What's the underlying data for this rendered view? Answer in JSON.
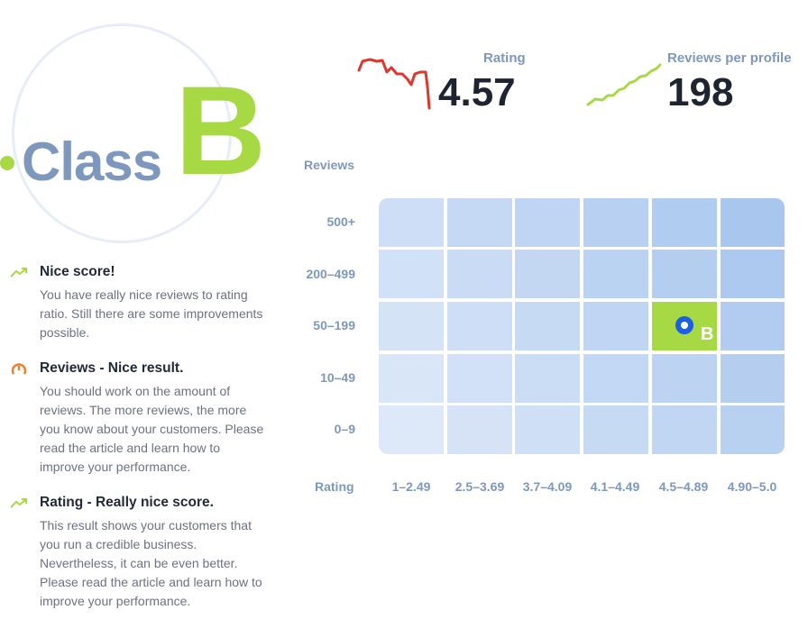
{
  "class_badge": {
    "word": "Class",
    "letter": "B"
  },
  "metrics": {
    "rating": {
      "label": "Rating",
      "value": "4.57"
    },
    "reviews_per_profile": {
      "label": "Reviews per profile",
      "value": "198"
    }
  },
  "insights": [
    {
      "icon": "trending-up-icon",
      "title": "Nice score!",
      "description": "You have really nice reviews to rating ratio. Still there are some improvements possible."
    },
    {
      "icon": "gauge-icon",
      "title": "Reviews - Nice result.",
      "description": "You should work on the amount of reviews. The more reviews, the more you know about your customers. Please read the article and learn how to improve your performance."
    },
    {
      "icon": "trending-up-icon",
      "title": "Rating - Really nice score.",
      "description": "This result shows your customers that you run a credible business. Nevertheless, it can be even better. Please read the article and learn how to improve your performance."
    }
  ],
  "grid": {
    "y_axis_title": "Reviews",
    "x_axis_title": "Rating",
    "rows": [
      "500+",
      "200-499",
      "50-199",
      "10-49",
      "0-9"
    ],
    "cols": [
      "1-2.49",
      "2.5-3.69",
      "3.7-4.09",
      "4.1-4.49",
      "4.5-4.89",
      "4.90-5.0"
    ],
    "marker": {
      "row": 2,
      "col": 4,
      "letter": "B"
    }
  },
  "colors": {
    "accent_green": "#a7d945",
    "label_blue": "#7e98bd",
    "marker_blue": "#1a5fe6",
    "rating_trend_red": "#e0352b",
    "gauge_orange": "#f07d2c"
  }
}
